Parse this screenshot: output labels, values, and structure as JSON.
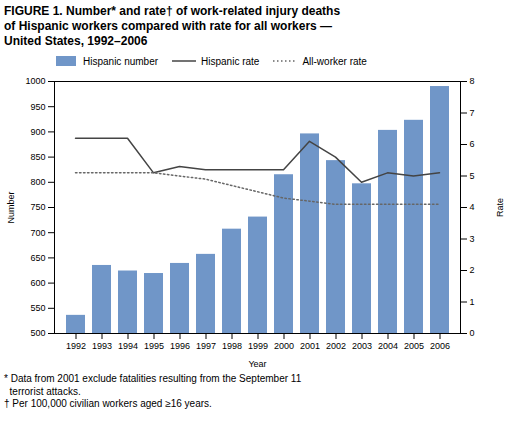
{
  "chart_data": {
    "type": "bar",
    "title": "FIGURE 1. Number* and rate† of work-related injury deaths\nof Hispanic workers compared with rate for all workers —\nUnited States, 1992–2006",
    "footnote": "* Data from 2001 exclude fatalities resulting from the September 11\n  terrorist attacks.\n† Per 100,000 civilian workers aged ≥16 years.",
    "categories": [
      1992,
      1993,
      1994,
      1995,
      1996,
      1997,
      1998,
      1999,
      2000,
      2001,
      2002,
      2003,
      2004,
      2005,
      2006
    ],
    "series": [
      {
        "name": "Hispanic number",
        "type": "bar",
        "color": "#7096C8",
        "values": [
          536,
          635,
          624,
          619,
          639,
          657,
          707,
          731,
          815,
          896,
          843,
          797,
          903,
          923,
          990
        ]
      },
      {
        "name": "Hispanic rate",
        "type": "line",
        "axis": "y2",
        "color": "#444444",
        "line_style": "solid",
        "values": [
          6.2,
          6.2,
          6.2,
          5.1,
          5.3,
          5.2,
          5.2,
          5.2,
          5.2,
          6.1,
          5.6,
          4.8,
          5.1,
          5.0,
          5.1
        ]
      },
      {
        "name": "All-worker rate",
        "type": "line",
        "axis": "y2",
        "color": "#666666",
        "line_style": "dotted",
        "values": [
          5.1,
          5.1,
          5.1,
          5.1,
          5.0,
          4.9,
          4.7,
          4.5,
          4.3,
          4.2,
          4.1,
          4.1,
          4.1,
          4.1,
          4.1
        ]
      }
    ],
    "xlabel": "Year",
    "ylabel": "Number",
    "y2label": "Rate",
    "ylim": [
      500,
      1000
    ],
    "yticks": [
      500,
      550,
      600,
      650,
      700,
      750,
      800,
      850,
      900,
      950,
      1000
    ],
    "y2lim": [
      0,
      8
    ],
    "y2ticks": [
      0,
      1,
      2,
      3,
      4,
      5,
      6,
      7,
      8
    ],
    "grid": false,
    "legend": "top"
  }
}
